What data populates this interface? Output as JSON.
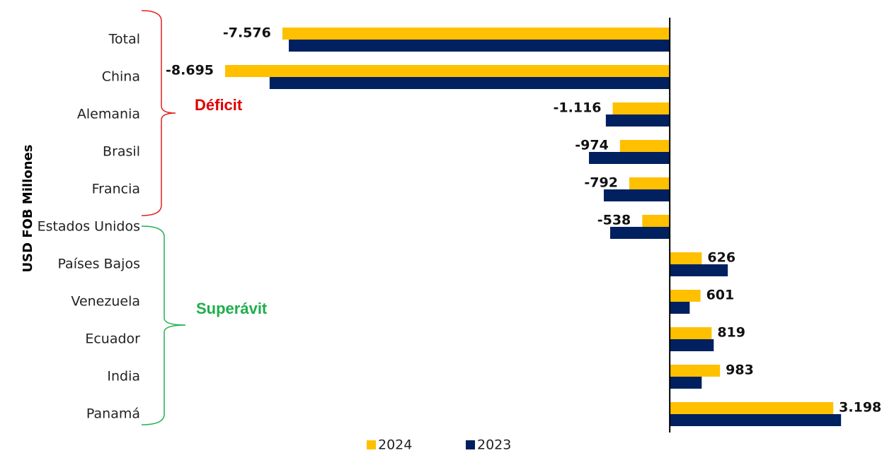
{
  "chart_data": {
    "type": "bar",
    "orientation": "horizontal",
    "y_label": "USD FOB Millones",
    "annotations": [
      "Déficit",
      "Superávit"
    ],
    "categories": [
      "Total",
      "China",
      "Alemania",
      "Brasil",
      "Francia",
      "Estados Unidos",
      "Países Bajos",
      "Venezuela",
      "Ecuador",
      "India",
      "Panamá"
    ],
    "series": [
      {
        "name": "2024",
        "color": "#FFC000",
        "values": [
          -7576,
          -8695,
          -1116,
          -974,
          -792,
          -538,
          626,
          601,
          819,
          983,
          3198
        ],
        "value_labels": [
          "-7.576",
          "-8.695",
          "-1.116",
          "-974",
          "-792",
          "-538",
          "626",
          "601",
          "819",
          "983",
          "3.198"
        ]
      },
      {
        "name": "2023",
        "color": "#002060",
        "values": [
          -7450,
          -7825,
          -1250,
          -1580,
          -1290,
          -1165,
          1135,
          390,
          860,
          625,
          3350
        ]
      }
    ],
    "xlim": [
      -9000,
      3500
    ]
  }
}
